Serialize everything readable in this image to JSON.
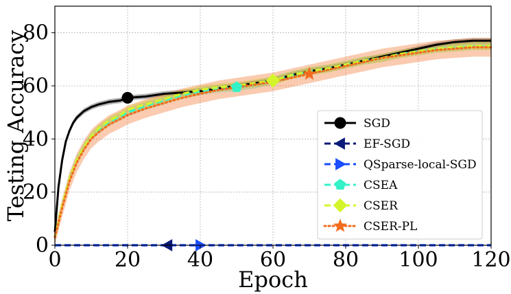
{
  "chart_data": {
    "type": "line",
    "title": "",
    "xlabel": "Epoch",
    "ylabel": "Testing Accuracy",
    "xlim": [
      0,
      120
    ],
    "ylim": [
      0,
      90
    ],
    "xticks": [
      0,
      20,
      40,
      60,
      80,
      100,
      120
    ],
    "yticks": [
      0,
      20,
      40,
      60,
      80
    ],
    "grid": true,
    "legend_position": "lower-right",
    "series": [
      {
        "name": "SGD",
        "color": "#000000",
        "linestyle": "solid",
        "marker": "circle",
        "marker_at": 20,
        "band": 1.0,
        "x": [
          0,
          1,
          2,
          3,
          4,
          5,
          6,
          8,
          10,
          12,
          15,
          18,
          20,
          25,
          30,
          35,
          40,
          45,
          50,
          55,
          60,
          65,
          70,
          75,
          80,
          85,
          90,
          95,
          100,
          105,
          110,
          115,
          120
        ],
        "y": [
          5,
          22,
          32,
          39,
          43,
          46,
          48,
          50.5,
          52,
          53,
          54,
          54.5,
          55.5,
          56,
          57,
          57.5,
          58,
          59,
          60,
          61,
          62,
          64,
          65.5,
          66.5,
          68,
          69.5,
          71,
          72.5,
          74,
          75.5,
          76.5,
          77,
          77
        ]
      },
      {
        "name": "EF-SGD",
        "color": "#0a1a78",
        "linestyle": "dashed",
        "marker": "triangle-left",
        "marker_at": 31,
        "band": 0,
        "x": [
          0,
          120
        ],
        "y": [
          0,
          0
        ]
      },
      {
        "name": "QSparse-local-SGD",
        "color": "#1a4dff",
        "linestyle": "dashed",
        "marker": "triangle-right",
        "marker_at": 40,
        "band": 0,
        "x": [
          0,
          120
        ],
        "y": [
          0,
          0
        ]
      },
      {
        "name": "CSEA",
        "color": "#33f2c8",
        "linestyle": "dashed",
        "marker": "pentagon",
        "marker_at": 50,
        "band": 1.5,
        "x": [
          0,
          2,
          4,
          6,
          8,
          10,
          12,
          15,
          18,
          20,
          25,
          30,
          35,
          40,
          45,
          50,
          55,
          60,
          65,
          70,
          75,
          80,
          85,
          90,
          95,
          100,
          105,
          110,
          115,
          120
        ],
        "y": [
          3,
          15,
          25,
          32,
          37,
          41,
          43.5,
          46.5,
          48.5,
          50,
          52.5,
          54.5,
          56.5,
          58,
          59,
          59.5,
          60.5,
          62,
          64,
          65.5,
          66.5,
          68,
          69.5,
          70.5,
          72,
          73,
          74,
          74.5,
          75,
          75
        ]
      },
      {
        "name": "CSER",
        "color": "#d4f52a",
        "linestyle": "dashed",
        "marker": "diamond",
        "marker_at": 60,
        "band": 1.5,
        "x": [
          0,
          2,
          4,
          6,
          8,
          10,
          12,
          15,
          18,
          20,
          25,
          30,
          35,
          40,
          45,
          50,
          55,
          60,
          65,
          70,
          75,
          80,
          85,
          90,
          95,
          100,
          105,
          110,
          115,
          120
        ],
        "y": [
          3,
          15,
          25,
          32,
          37,
          41,
          44,
          47,
          49,
          51,
          53,
          55,
          57,
          58.5,
          59.5,
          60,
          61,
          62,
          64,
          65.5,
          66.5,
          68,
          69.5,
          70.5,
          72,
          73,
          74,
          74.5,
          75,
          75
        ]
      },
      {
        "name": "CSER-PL",
        "color": "#f26b1d",
        "linestyle": "dotted",
        "marker": "star",
        "marker_at": 70,
        "band": 3.5,
        "x": [
          0,
          2,
          4,
          6,
          8,
          10,
          12,
          15,
          18,
          20,
          25,
          30,
          35,
          40,
          45,
          50,
          55,
          60,
          65,
          70,
          75,
          80,
          85,
          90,
          95,
          100,
          105,
          110,
          115,
          120
        ],
        "y": [
          3,
          14,
          24,
          31,
          36,
          40,
          42.5,
          45.5,
          47.5,
          49,
          51.5,
          53.5,
          55.5,
          57,
          58.5,
          59.5,
          60.5,
          61.5,
          63,
          64.5,
          66,
          67.5,
          69,
          70.5,
          71.5,
          72.5,
          73.5,
          74,
          74.5,
          74.5
        ]
      }
    ]
  }
}
